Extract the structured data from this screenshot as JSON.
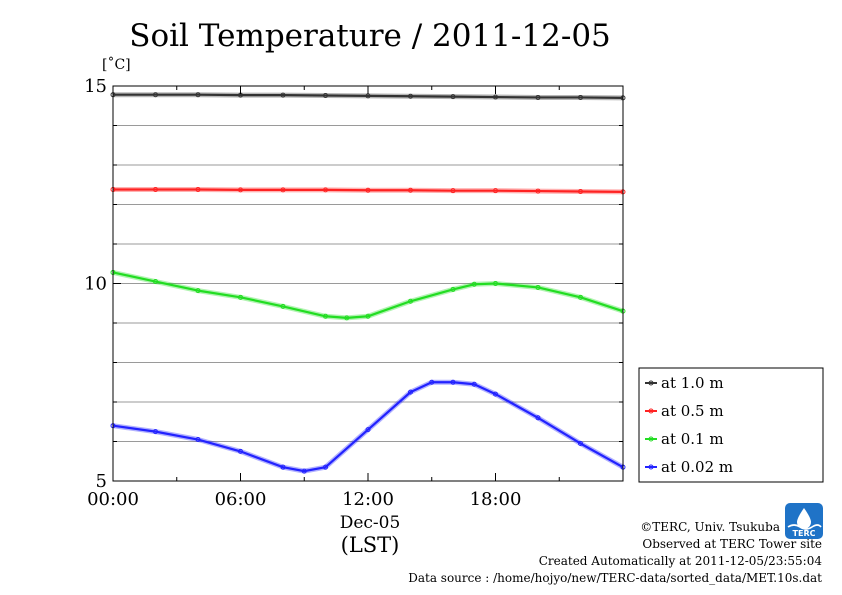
{
  "chart_data": {
    "type": "line",
    "title": "Soil Temperature / 2011-12-05",
    "y_unit": "[˚C]",
    "xlabel_date": "Dec-05",
    "xlabel_tz": "(LST)",
    "xlim": [
      0,
      24
    ],
    "ylim": [
      5,
      15
    ],
    "x_ticks": [
      {
        "value": 0,
        "label": "00:00"
      },
      {
        "value": 6,
        "label": "06:00"
      },
      {
        "value": 12,
        "label": "12:00"
      },
      {
        "value": 18,
        "label": "18:00"
      }
    ],
    "y_ticks": [
      {
        "value": 5,
        "label": "5"
      },
      {
        "value": 10,
        "label": "10"
      },
      {
        "value": 15,
        "label": "15"
      }
    ],
    "grid_y": [
      6,
      7,
      8,
      9,
      11,
      12,
      13,
      14
    ],
    "grid": true,
    "legend_position": "right",
    "series": [
      {
        "name": "at 1.0 m",
        "color": "#333333",
        "x": [
          0,
          2,
          4,
          6,
          8,
          10,
          12,
          14,
          16,
          18,
          20,
          22,
          24
        ],
        "y": [
          14.78,
          14.78,
          14.78,
          14.77,
          14.77,
          14.76,
          14.75,
          14.74,
          14.73,
          14.72,
          14.71,
          14.71,
          14.7
        ]
      },
      {
        "name": "at 0.5 m",
        "color": "#ff2222",
        "x": [
          0,
          2,
          4,
          6,
          8,
          10,
          12,
          14,
          16,
          18,
          20,
          22,
          24
        ],
        "y": [
          12.38,
          12.38,
          12.38,
          12.37,
          12.37,
          12.37,
          12.36,
          12.36,
          12.35,
          12.35,
          12.34,
          12.33,
          12.32
        ]
      },
      {
        "name": "at 0.1 m",
        "color": "#22dd22",
        "x": [
          0,
          2,
          4,
          6,
          8,
          10,
          11,
          12,
          14,
          16,
          17,
          18,
          20,
          22,
          24
        ],
        "y": [
          10.28,
          10.05,
          9.82,
          9.65,
          9.42,
          9.17,
          9.13,
          9.17,
          9.55,
          9.85,
          9.98,
          10.0,
          9.9,
          9.65,
          9.3
        ]
      },
      {
        "name": "at 0.02 m",
        "color": "#2222ff",
        "x": [
          0,
          2,
          4,
          6,
          8,
          9,
          10,
          12,
          14,
          15,
          16,
          17,
          18,
          20,
          22,
          24
        ],
        "y": [
          6.4,
          6.25,
          6.05,
          5.75,
          5.35,
          5.25,
          5.35,
          6.3,
          7.25,
          7.5,
          7.5,
          7.45,
          7.2,
          6.6,
          5.95,
          5.35
        ]
      }
    ]
  },
  "credits": {
    "copyright": "©TERC, Univ. Tsukuba",
    "observed": "Observed at TERC Tower site",
    "created": "Created Automatically at 2011-12-05/23:55:04",
    "source": "Data source : /home/hojyo/new/TERC-data/sorted_data/MET.10s.dat"
  },
  "logo": {
    "text": "TERC",
    "color": "#1f73c7"
  }
}
